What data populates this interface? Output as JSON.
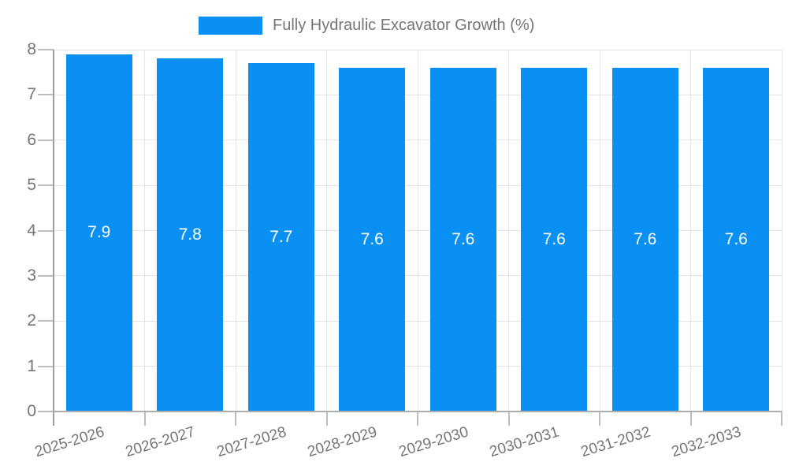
{
  "chart_data": {
    "type": "bar",
    "title": "Fully Hydraulic Excavator Growth (%)",
    "legend": [
      "Fully Hydraulic Excavator Growth (%)"
    ],
    "legend_position": "top-center",
    "categories": [
      "2025-2026",
      "2026-2027",
      "2027-2028",
      "2028-2029",
      "2029-2030",
      "2030-2031",
      "2031-2032",
      "2032-2033"
    ],
    "values": [
      7.9,
      7.8,
      7.7,
      7.6,
      7.6,
      7.6,
      7.6,
      7.6
    ],
    "bar_labels": [
      "7.9",
      "7.8",
      "7.7",
      "7.6",
      "7.6",
      "7.6",
      "7.6",
      "7.6"
    ],
    "xlabel": "",
    "ylabel": "",
    "ylim": [
      0,
      8
    ],
    "yticks": [
      "0",
      "1",
      "2",
      "3",
      "4",
      "5",
      "6",
      "7",
      "8"
    ],
    "grid": true,
    "xlabel_rotation_deg": -17,
    "colors": {
      "bar": "#0A8FF2",
      "bar_label_text": "#FFFFFF",
      "grid": "#E3E3E3",
      "axis": "#9E9E9E",
      "baseline": "#ADADAD",
      "tick": "#BDBDBD",
      "text": "#757575",
      "background": "#FFFFFF"
    }
  }
}
